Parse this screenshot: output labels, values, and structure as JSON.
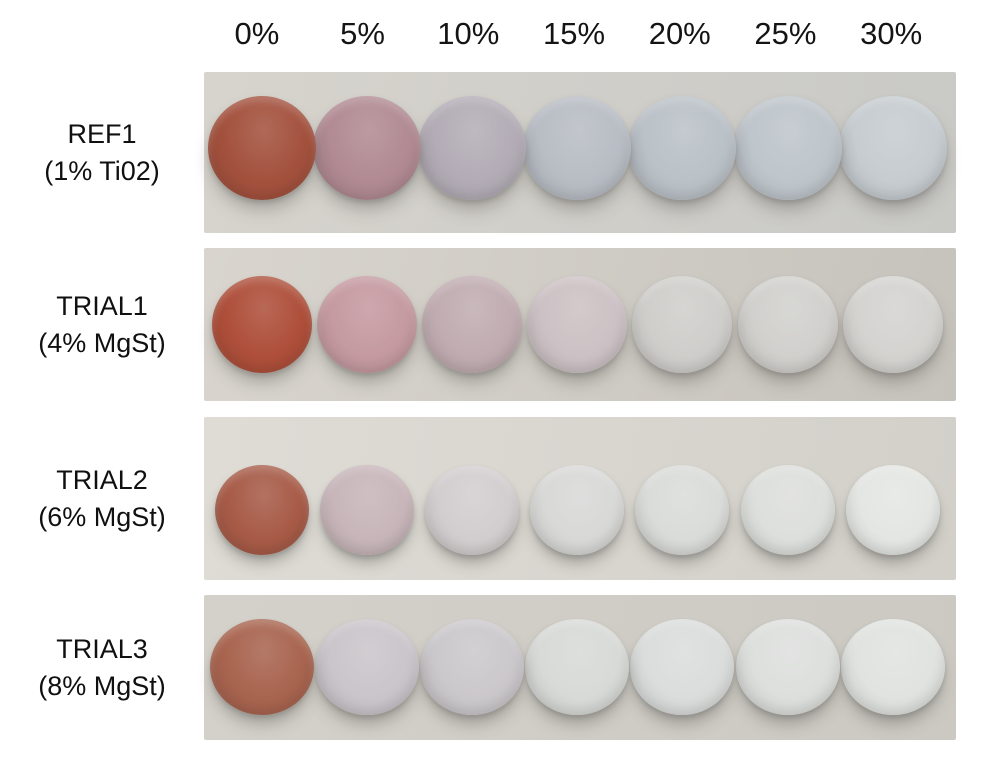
{
  "figure": {
    "description": "Tablet colour progression photographs at increasing coating levels",
    "column_headers": [
      "0%",
      "5%",
      "10%",
      "15%",
      "20%",
      "25%",
      "30%"
    ],
    "text_color": "#141414",
    "rows": [
      {
        "id": "ref1",
        "label_line1": "REF1",
        "label_line2": "(1% Ti02)",
        "strip_bg_left": "#d7d4cd",
        "strip_bg_right": "#c9c9c6",
        "tablet_colors": [
          "#a3513d",
          "#b18a93",
          "#b3acb6",
          "#b8bdc4",
          "#bac1c7",
          "#bec5cb",
          "#c6ccd0"
        ]
      },
      {
        "id": "trial1",
        "label_line1": "TRIAL1",
        "label_line2": "(4% MgSt)",
        "strip_bg_left": "#d9d5ce",
        "strip_bg_right": "#c6c3bc",
        "tablet_colors": [
          "#ae4f3a",
          "#c59aa1",
          "#c0acb1",
          "#ccc1c4",
          "#cfcecb",
          "#d1d0cd",
          "#d4d3d0"
        ]
      },
      {
        "id": "trial2",
        "label_line1": "TRIAL2",
        "label_line2": "(6% MgSt)",
        "strip_bg_left": "#dedcd5",
        "strip_bg_right": "#d2d0c9",
        "tablet_colors": [
          "#a75b47",
          "#c7b5b9",
          "#d2cecf",
          "#d8d9d7",
          "#dadcd9",
          "#dddfdc",
          "#e4e6e3"
        ]
      },
      {
        "id": "trial3",
        "label_line1": "TRIAL3",
        "label_line2": "(8% MgSt)",
        "strip_bg_left": "#d4d1ca",
        "strip_bg_right": "#cbc9c2",
        "tablet_colors": [
          "#a8644f",
          "#cac5ca",
          "#cbc8cb",
          "#d8dad7",
          "#dadddb",
          "#dddfdd",
          "#e0e3e0"
        ]
      }
    ]
  }
}
